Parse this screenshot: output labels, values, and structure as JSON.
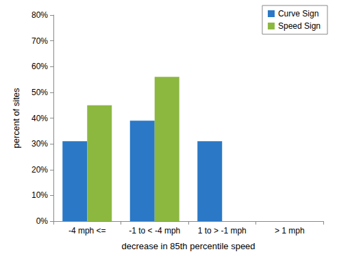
{
  "chart_data": {
    "type": "bar",
    "x_label": "decrease in 85th percentile speed",
    "y_label": "percent of sites",
    "categories": [
      "-4 mph <=",
      "-1 to < -4 mph",
      "1 to > -1 mph",
      "> 1 mph"
    ],
    "series": [
      {
        "name": "Curve Sign",
        "color": "#2a78c6",
        "values": [
          31,
          39,
          31,
          0
        ]
      },
      {
        "name": "Speed Sign",
        "color": "#8cb840",
        "values": [
          45,
          56,
          0,
          0
        ]
      }
    ],
    "ylim": [
      0,
      80
    ],
    "yticks": [
      {
        "value": 0,
        "label": "0%"
      },
      {
        "value": 10,
        "label": "10%"
      },
      {
        "value": 20,
        "label": "20%"
      },
      {
        "value": 30,
        "label": "30%"
      },
      {
        "value": 40,
        "label": "40%"
      },
      {
        "value": 50,
        "label": "50%"
      },
      {
        "value": 60,
        "label": "60%"
      },
      {
        "value": 70,
        "label": "70%"
      },
      {
        "value": 80,
        "label": "80%"
      }
    ],
    "grid": false,
    "legend": "top-right"
  }
}
